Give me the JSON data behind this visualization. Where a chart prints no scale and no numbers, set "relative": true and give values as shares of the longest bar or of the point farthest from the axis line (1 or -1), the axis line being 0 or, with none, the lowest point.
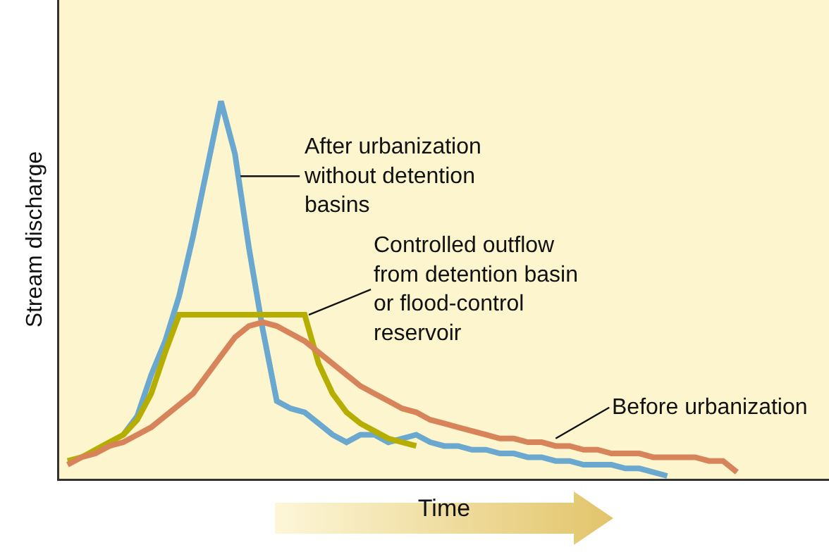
{
  "chart_data": {
    "type": "line",
    "relative": true,
    "xlabel": "Time",
    "ylabel": "Stream discharge",
    "legend": false,
    "marker": "none",
    "line_style": "solid",
    "grid": false,
    "categories": [
      null,
      null,
      null,
      null,
      null,
      null,
      null,
      null,
      null,
      null,
      null,
      null,
      null,
      null,
      null,
      null,
      null,
      null,
      null,
      null,
      null,
      null,
      null,
      null,
      null,
      null,
      null,
      null,
      null,
      null,
      null,
      null,
      null,
      null,
      null,
      null,
      null,
      null,
      null,
      null,
      null,
      null,
      null,
      null,
      null,
      null,
      null,
      null,
      null
    ],
    "series": [
      {
        "name": "After urbanization\nwithout detention\nbasins",
        "color": "#6aa8d0",
        "values": [
          null,
          null,
          null,
          null,
          0.11,
          0.16,
          0.27,
          0.36,
          0.48,
          0.64,
          0.82,
          1,
          0.86,
          0.61,
          0.39,
          0.2,
          0.18,
          0.17,
          0.14,
          0.11,
          0.09,
          0.11,
          0.11,
          0.09,
          0.1,
          0.11,
          0.09,
          0.08,
          0.08,
          0.07,
          0.07,
          0.06,
          0.06,
          0.05,
          0.05,
          0.04,
          0.04,
          0.03,
          0.03,
          0.03,
          0.02,
          0.02,
          0.01,
          0,
          null,
          null,
          null,
          null,
          null
        ]
      },
      {
        "name": "Controlled outflow\nfrom detention basin\nor flood-control\nreservoir",
        "color": "#b5ae00",
        "values": [
          0.04,
          0.05,
          0.07,
          0.09,
          0.11,
          0.15,
          0.22,
          0.33,
          0.43,
          0.43,
          0.43,
          0.43,
          0.43,
          0.43,
          0.43,
          0.43,
          0.43,
          0.43,
          0.3,
          0.22,
          0.17,
          0.14,
          0.12,
          0.1,
          0.09,
          0.08,
          null,
          null,
          null,
          null,
          null,
          null,
          null,
          null,
          null,
          null,
          null,
          null,
          null,
          null,
          null,
          null,
          null,
          null,
          null,
          null,
          null,
          null,
          null
        ]
      },
      {
        "name": "Before urbanization",
        "color": "#d8845a",
        "values": [
          0.03,
          0.05,
          0.06,
          0.08,
          0.09,
          0.11,
          0.13,
          0.16,
          0.19,
          0.22,
          0.27,
          0.32,
          0.37,
          0.4,
          0.41,
          0.4,
          0.38,
          0.36,
          0.33,
          0.3,
          0.27,
          0.24,
          0.22,
          0.2,
          0.18,
          0.17,
          0.15,
          0.14,
          0.13,
          0.12,
          0.11,
          0.1,
          0.1,
          0.09,
          0.09,
          0.08,
          0.08,
          0.07,
          0.07,
          0.06,
          0.06,
          0.06,
          0.05,
          0.05,
          0.05,
          0.05,
          0.04,
          0.04,
          0.01
        ]
      }
    ]
  }
}
